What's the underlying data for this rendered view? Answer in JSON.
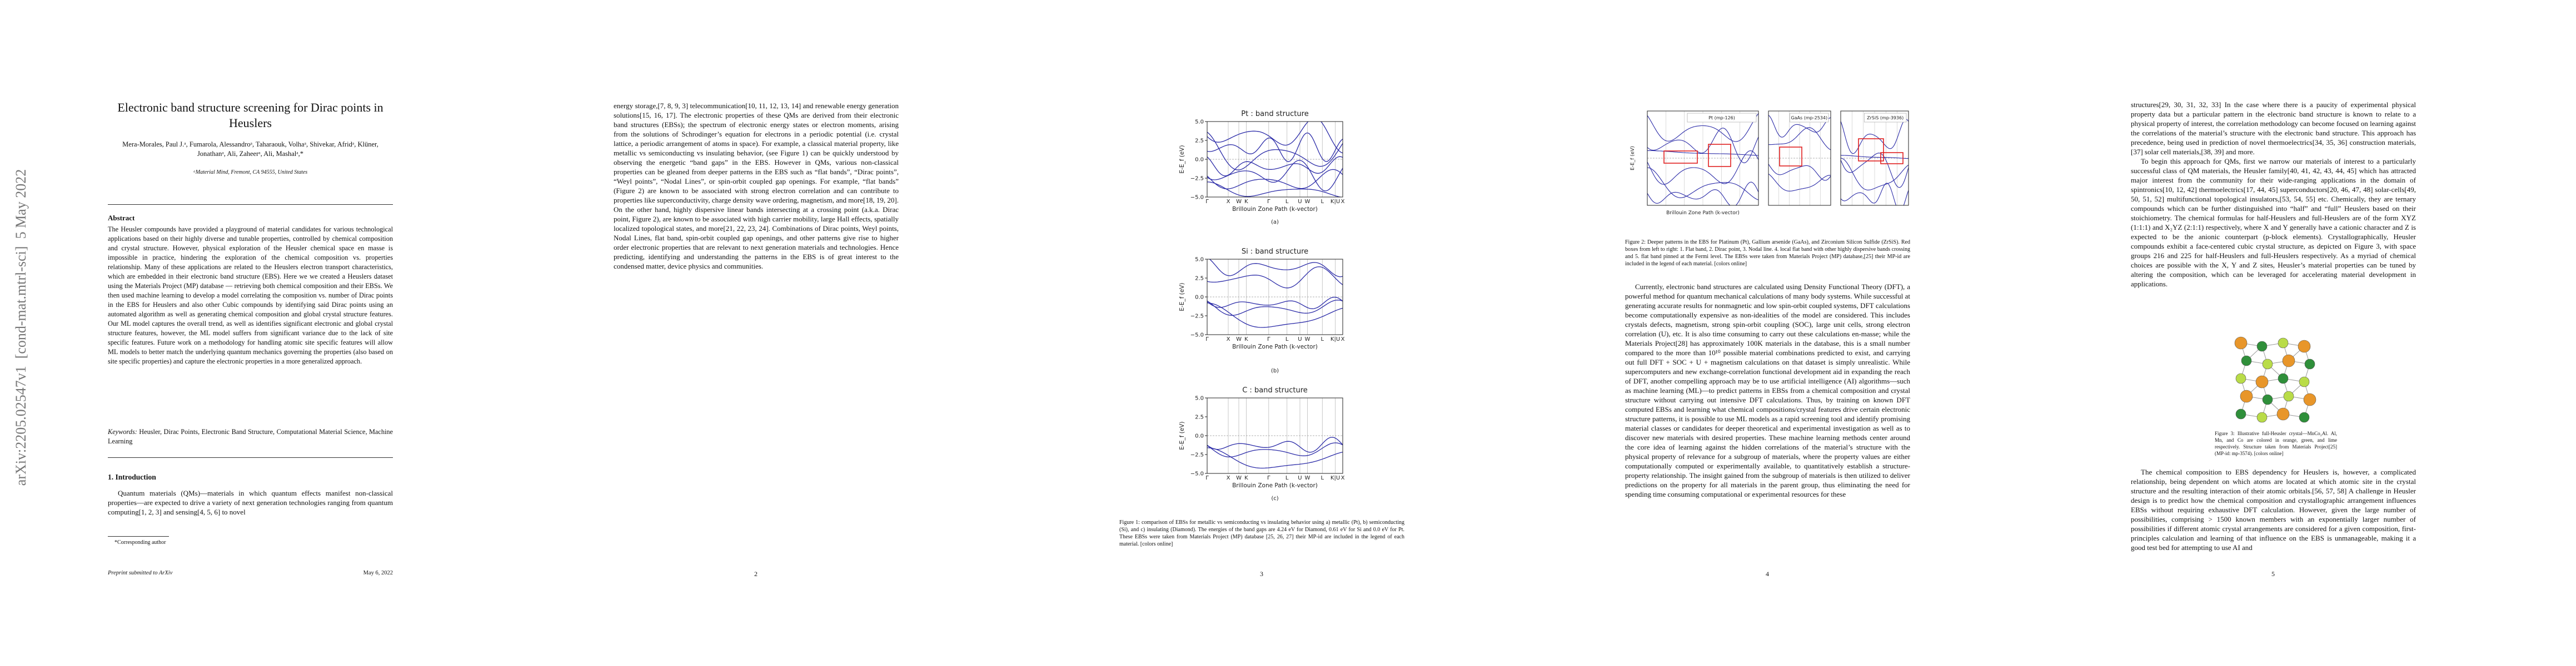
{
  "sidebar": "arXiv:2205.02547v1  [cond-mat.mtrl-sci]  5 May 2022",
  "page1": {
    "title": "Electronic band structure screening for Dirac points in Heuslers",
    "authors": "Mera-Morales, Paul J.ᵃ, Fumarola, Alessandroᵃ, Taharaouk, Volhaᵃ, Shivekar, Afridᵃ, Klüner, Jonathanᵃ, Ali, Zaheerᵃ, Ali, Mashalᵃ,*",
    "affiliation": "ᵃMaterial Mind, Fremont, CA 94555, United States",
    "abstract_heading": "Abstract",
    "abstract": "The Heusler compounds have provided a playground of material candidates for various technological applications based on their highly diverse and tunable properties, controlled by chemical composition and crystal structure. However, physical exploration of the Heusler chemical space en masse is impossible in practice, hindering the exploration of the chemical composition vs. properties relationship. Many of these applications are related to the Heuslers electron transport characteristics, which are embedded in their electronic band structure (EBS). Here we we created a Heuslers dataset using the Materials Project (MP) database — retrieving both chemical composition and their EBSs. We then used machine learning to develop a model correlating the composition vs. number of Dirac points in the EBS for Heuslers and also other Cubic compounds by identifying said Dirac points using an automated algorithm as well as generating chemical composition and global crystal structure features. Our ML model captures the overall trend, as well as identifies significant electronic and global crystal structure features, however, the ML model suffers from significant variance due to the lack of site specific features. Future work on a methodology for handling atomic site specific features will allow ML models to better match the underlying quantum mechanics governing the properties (also based on site specific properties) and capture the electronic properties in a more generalized approach.",
    "keywords_label": "Keywords:",
    "keywords": "Heusler, Dirac Points, Electronic Band Structure, Computational Material Science, Machine Learning",
    "section_heading": "1. Introduction",
    "intro": "Quantum materials (QMs)—materials in which quantum effects manifest non-classical properties—are expected to drive a variety of next generation technologies ranging from quantum computing[1, 2, 3] and sensing[4, 5, 6] to novel",
    "footnote": "*Corresponding author",
    "footer_left": "Preprint submitted to ArXiv",
    "footer_right": "May 6, 2022"
  },
  "page2": {
    "paragraph": "energy storage,[7, 8, 9, 3] telecommunication[10, 11, 12, 13, 14] and renewable energy generation solutions[15, 16, 17]. The electronic properties of these QMs are derived from their electronic band structures (EBSs); the spectrum of electronic energy states or electron moments, arising from the solutions of Schrodinger’s equation for electrons in a periodic potential (i.e. crystal lattice, a periodic arrangement of atoms in space). For example, a classical material property, like metallic vs semiconducting vs insulating behavior, (see Figure 1) can be quickly understood by observing the energetic “band gaps” in the EBS. However in QMs, various non-classical properties can be gleaned from deeper patterns in the EBS such as “flat bands”, “Dirac points”, “Weyl points”, “Nodal Lines”, or spin-orbit coupled gap openings. For example, “flat bands” (Figure 2) are known to be associated with strong electron correlation and can contribute to properties like superconductivity, charge density wave ordering, magnetism, and more[18, 19, 20]. On the other hand, highly dispersive linear bands intersecting at a crossing point (a.k.a. Dirac point, Figure 2), are known to be associated with high carrier mobility, large Hall effects, spatially localized topological states, and more[21, 22, 23, 24]. Combinations of Dirac points, Weyl points, Nodal Lines, flat band, spin-orbit coupled gap openings, and other patterns give rise to higher order electronic properties that are relevant to next generation materials and technologies. Hence predicting, identifying and understanding the patterns in the EBS is of great interest to the condensed matter, device physics and communities.",
    "page_number": "2"
  },
  "page3": {
    "figure1": {
      "panels": [
        {
          "title": "Pt : band structure",
          "y_label": "E-E_f (eV)",
          "x_label": "Brillouin Zone Path (k-vector)",
          "panel_label": "(a)",
          "yticks": [
            "5.0",
            "2.5",
            "0.0",
            "−2.5",
            "−5.0"
          ],
          "xticks": [
            "Γ",
            "X",
            "W",
            "K",
            "Γ",
            "L",
            "U",
            "W",
            "L",
            "K|U",
            "X"
          ]
        },
        {
          "title": "Si : band structure",
          "y_label": "E-E_f (eV)",
          "x_label": "Brillouin Zone Path (k-vector)",
          "panel_label": "(b)",
          "yticks": [
            "5.0",
            "2.5",
            "0.0",
            "−2.5",
            "−5.0"
          ],
          "xticks": [
            "Γ",
            "X",
            "W",
            "K",
            "Γ",
            "L",
            "U",
            "W",
            "L",
            "K|U",
            "X"
          ]
        },
        {
          "title": "C : band structure",
          "y_label": "E-E_f (eV)",
          "x_label": "Brillouin Zone Path (k-vector)",
          "panel_label": "(c)",
          "yticks": [
            "5.0",
            "2.5",
            "0.0",
            "−2.5",
            "−5.0"
          ],
          "xticks": [
            "Γ",
            "X",
            "W",
            "K",
            "Γ",
            "L",
            "U",
            "W",
            "L",
            "K|U",
            "X"
          ]
        }
      ],
      "caption": "Figure 1: comparison of EBSs for metallic vs semiconducting vs insulating behavior using a) metallic (Pt), b) semiconducting (Si), and c) insulating (Diamond). The energies of the band gaps are 4.24 eV for Diamond, 0.61 eV for Si and 0.0 eV for Pt. These EBSs were taken from Materials Project (MP) database [25, 26, 27] their MP-id are included in the legend of each material. [colors online]"
    },
    "page_number": "3"
  },
  "page4": {
    "figure2": {
      "legends": [
        "Pt (mp-126)",
        "GaAs (mp-2534)",
        "ZrSiS (mp-3936)"
      ],
      "y_label": "E-E_f (eV)",
      "x_label": "Brillouin Zone Path (k-vector)",
      "caption": "Figure 2: Deeper patterns in the EBS for Platinum (Pt), Gallium arsenide (GaAs), and Zirconium Silicon Sulfide (ZrSiS). Red boxes from left to right: 1. Flat band, 2. Dirac point, 3. Nodal line. 4. local flat band with other highly dispersive bands crossing and 5. flat band pinned at the Fermi level. The EBSs were taken from Materials Project (MP) database,[25] their MP-id are included in the legend of each material. [colors online]"
    },
    "paragraph": "Currently, electronic band structures are calculated using Density Functional Theory (DFT), a powerful method for quantum mechanical calculations of many body systems. While successful at generating accurate results for nonmagnetic and low spin-orbit coupled systems, DFT calculations become computationally expensive as non-idealities of the model are considered. This includes crystals defects, magnetism, strong spin-orbit coupling (SOC), large unit cells, strong electron correlation (U), etc. It is also time consuming to carry out these calculations en-masse; while the Materials Project[28] has approximately 100K materials in the database, this is a small number compared to the more than 10¹⁰ possible material combinations predicted to exist, and carrying out full DFT + SOC + U + magnetism calculations on that dataset is simply unrealistic. While supercomputers and new exchange-correlation functional development aid in expanding the reach of DFT, another compelling approach may be to use artificial intelligence (AI) algorithms—such as machine learning (ML)—to predict patterns in EBSs from a chemical composition and crystal structure without carrying out intensive DFT calculations. Thus, by training on known DFT computed EBSs and learning what chemical compositions/crystal features drive certain electronic structure patterns, it is possible to use ML models as a rapid screening tool and identify promising material classes or candidates for deeper theoretical and experimental investigation as well as to discover new materials with desired properties. These machine learning methods center around the core idea of learning against the hidden correlations of the material’s structure with the physical property of relevance for a subgroup of materials, where the property values are either computationally computed or experimentally available, to quantitatively establish a structure-property relationship. The insight gained from the subgroup of materials is then utilized to deliver predictions on the property for all materials in the parent group, thus eliminating the need for spending time consuming computational or experimental resources for these",
    "page_number": "4"
  },
  "page5": {
    "paragraphs": [
      "structures[29, 30, 31, 32, 33] In the case where there is a paucity of experimental physical property data but a particular pattern in the electronic band structure is known to relate to a physical property of interest, the correlation methodology can become focused on learning against the correlations of the material’s structure with the electronic band structure. This approach has precedence, being used in prediction of novel thermoelectrics[34, 35, 36] construction materials,[37] solar cell materials,[38, 39] and more.",
      "To begin this approach for QMs, first we narrow our materials of interest to a particularly successful class of QM materials, the Heusler family[40, 41, 42, 43, 44, 45] which has attracted major interest from the community for their wide-ranging applications in the domain of spintronics[10, 12, 42] thermoelectrics[17, 44, 45] superconductors[20, 46, 47, 48] solar-cells[49, 50, 51, 52] multifunctional topological insulators,[53, 54, 55] etc. Chemically, they are ternary compounds which can be further distinguished into “half” and “full” Heuslers based on their stoichiometry. The chemical formulas for half-Heuslers and full-Heuslers are of the form XYZ (1:1:1) and X₂YZ (2:1:1) respectively, where X and Y generally have a cationic character and Z is expected to be the anionic counterpart (p-block elements). Crystallographically, Heusler compounds exhibit a face-centered cubic crystal structure, as depicted on Figure 3, with space groups 216 and 225 for half-Heuslers and full-Heuslers respectively. As a myriad of chemical choices are possible with the X, Y and Z sites, Heusler’s material properties can be tuned by altering the composition, which can be leveraged for accelerating material development in applications."
    ],
    "figure3_caption": "Figure 3: Illustrative full-Heusler crystal—MnCo₂Al. Al, Mn, and Co are colored in orange, green, and lime respectively. Structure taken from Materials Project[25] (MP-id: mp-3574). [colors online]",
    "paragraph_after": "The chemical composition to EBS dependency for Heuslers is, however, a complicated relationship, being dependent on which atoms are located at which atomic site in the crystal structure and the resulting interaction of their atomic orbitals.[56, 57, 58] A challenge in Heusler design is to predict how the chemical composition and crystallographic arrangement influences EBSs without requiring exhaustive DFT calculation. However, given the large number of possibilities, comprising > 1500 known members with an exponentially larger number of possibilities if different atomic crystal arrangements are considered for a given composition, first-principles calculation and learning of that influence on the EBS is unmanageable, making it a good test bed for attempting to use AI and",
    "page_number": "5"
  }
}
